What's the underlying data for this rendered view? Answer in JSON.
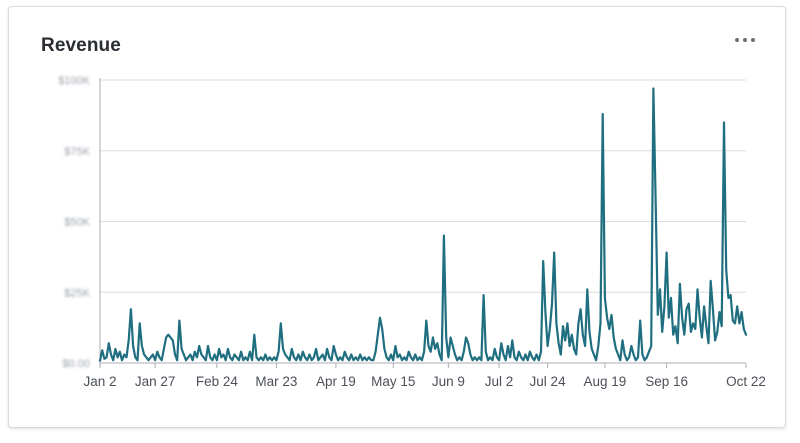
{
  "widget": {
    "title": "Revenue",
    "menu_icon": "more-horizontal-icon"
  },
  "colors": {
    "line": "#1f6f80",
    "grid": "#dcdde0",
    "axis": "#a9adb3"
  },
  "chart_data": {
    "type": "line",
    "title": "Revenue",
    "xlabel": "",
    "ylabel": "",
    "x_tick_labels": [
      "Jan 2",
      "Jan 27",
      "Feb 24",
      "Mar 23",
      "Apr 19",
      "May 15",
      "Jun 9",
      "Jul 2",
      "Jul 24",
      "Aug 19",
      "Sep 16",
      "Oct 22"
    ],
    "y_tick_labels": [
      "$0.00",
      "$25K",
      "$50K",
      "$75K",
      "$100K"
    ],
    "y_tick_values": [
      0,
      25,
      50,
      75,
      100
    ],
    "ylim": [
      0,
      100
    ],
    "grid": true,
    "legend": "none",
    "y_labels_blurred": true,
    "x_day_range": [
      0,
      293
    ],
    "x_tick_days": [
      0,
      25,
      53,
      80,
      107,
      133,
      158,
      181,
      203,
      229,
      257,
      293
    ],
    "series": [
      {
        "points": [
          [
            0,
            0.8
          ],
          [
            1,
            4.5
          ],
          [
            2,
            1.5
          ],
          [
            3,
            2
          ],
          [
            4,
            7
          ],
          [
            5,
            3
          ],
          [
            6,
            1
          ],
          [
            7,
            5
          ],
          [
            8,
            2
          ],
          [
            9,
            4
          ],
          [
            10,
            1
          ],
          [
            11,
            3
          ],
          [
            12,
            2
          ],
          [
            13,
            8
          ],
          [
            14,
            19
          ],
          [
            15,
            6
          ],
          [
            16,
            2
          ],
          [
            17,
            1
          ],
          [
            18,
            14
          ],
          [
            19,
            6
          ],
          [
            20,
            3
          ],
          [
            21,
            2
          ],
          [
            22,
            1
          ],
          [
            23,
            2
          ],
          [
            24,
            3
          ],
          [
            25,
            1
          ],
          [
            26,
            4
          ],
          [
            27,
            2
          ],
          [
            28,
            1
          ],
          [
            29,
            5
          ],
          [
            30,
            9
          ],
          [
            31,
            10
          ],
          [
            32,
            9
          ],
          [
            33,
            8
          ],
          [
            34,
            3
          ],
          [
            35,
            1
          ],
          [
            36,
            15
          ],
          [
            37,
            5
          ],
          [
            38,
            3
          ],
          [
            39,
            1
          ],
          [
            40,
            2
          ],
          [
            41,
            3
          ],
          [
            42,
            1
          ],
          [
            43,
            4
          ],
          [
            44,
            2
          ],
          [
            45,
            6
          ],
          [
            46,
            3
          ],
          [
            47,
            2
          ],
          [
            48,
            1
          ],
          [
            49,
            6
          ],
          [
            50,
            2
          ],
          [
            51,
            1
          ],
          [
            52,
            3
          ],
          [
            53,
            1
          ],
          [
            54,
            5
          ],
          [
            55,
            2
          ],
          [
            56,
            3
          ],
          [
            57,
            1
          ],
          [
            58,
            5
          ],
          [
            59,
            2
          ],
          [
            60,
            1
          ],
          [
            61,
            3
          ],
          [
            62,
            2
          ],
          [
            63,
            1
          ],
          [
            64,
            4
          ],
          [
            65,
            1
          ],
          [
            66,
            2
          ],
          [
            67,
            1
          ],
          [
            68,
            4
          ],
          [
            69,
            1
          ],
          [
            70,
            10
          ],
          [
            71,
            2
          ],
          [
            72,
            1
          ],
          [
            73,
            2
          ],
          [
            74,
            1
          ],
          [
            75,
            3
          ],
          [
            76,
            1
          ],
          [
            77,
            2
          ],
          [
            78,
            1
          ],
          [
            79,
            2
          ],
          [
            80,
            1
          ],
          [
            81,
            4
          ],
          [
            82,
            14
          ],
          [
            83,
            5
          ],
          [
            84,
            3
          ],
          [
            85,
            2
          ],
          [
            86,
            1
          ],
          [
            87,
            5
          ],
          [
            88,
            2
          ],
          [
            89,
            1
          ],
          [
            90,
            3
          ],
          [
            91,
            1
          ],
          [
            92,
            4
          ],
          [
            93,
            2
          ],
          [
            94,
            1
          ],
          [
            95,
            3
          ],
          [
            96,
            1
          ],
          [
            97,
            2
          ],
          [
            98,
            5
          ],
          [
            99,
            1
          ],
          [
            100,
            2
          ],
          [
            101,
            3
          ],
          [
            102,
            1
          ],
          [
            103,
            5
          ],
          [
            104,
            2
          ],
          [
            105,
            1
          ],
          [
            106,
            6
          ],
          [
            107,
            3
          ],
          [
            108,
            1
          ],
          [
            109,
            2
          ],
          [
            110,
            1
          ],
          [
            111,
            4
          ],
          [
            112,
            2
          ],
          [
            113,
            1
          ],
          [
            114,
            3
          ],
          [
            115,
            1
          ],
          [
            116,
            2
          ],
          [
            117,
            1
          ],
          [
            118,
            3
          ],
          [
            119,
            1
          ],
          [
            120,
            2
          ],
          [
            121,
            1
          ],
          [
            122,
            2
          ],
          [
            123,
            1
          ],
          [
            124,
            1
          ],
          [
            125,
            4
          ],
          [
            126,
            10
          ],
          [
            127,
            16
          ],
          [
            128,
            12
          ],
          [
            129,
            5
          ],
          [
            130,
            2
          ],
          [
            131,
            1
          ],
          [
            132,
            3
          ],
          [
            133,
            1
          ],
          [
            134,
            6
          ],
          [
            135,
            2
          ],
          [
            136,
            3
          ],
          [
            137,
            1
          ],
          [
            138,
            2
          ],
          [
            139,
            1
          ],
          [
            140,
            4
          ],
          [
            141,
            2
          ],
          [
            142,
            1
          ],
          [
            143,
            3
          ],
          [
            144,
            1
          ],
          [
            145,
            2
          ],
          [
            146,
            1
          ],
          [
            147,
            4
          ],
          [
            148,
            15
          ],
          [
            149,
            6
          ],
          [
            150,
            4
          ],
          [
            151,
            9
          ],
          [
            152,
            5
          ],
          [
            153,
            7
          ],
          [
            154,
            3
          ],
          [
            155,
            1
          ],
          [
            156,
            45
          ],
          [
            157,
            9
          ],
          [
            158,
            2
          ],
          [
            159,
            9
          ],
          [
            160,
            6
          ],
          [
            161,
            3
          ],
          [
            162,
            1
          ],
          [
            163,
            2
          ],
          [
            164,
            1
          ],
          [
            165,
            4
          ],
          [
            166,
            9
          ],
          [
            167,
            7
          ],
          [
            168,
            3
          ],
          [
            169,
            1
          ],
          [
            170,
            2
          ],
          [
            171,
            1
          ],
          [
            172,
            2
          ],
          [
            173,
            1
          ],
          [
            174,
            24
          ],
          [
            175,
            4
          ],
          [
            176,
            1
          ],
          [
            177,
            2
          ],
          [
            178,
            1
          ],
          [
            179,
            5
          ],
          [
            180,
            2
          ],
          [
            181,
            1
          ],
          [
            182,
            7
          ],
          [
            183,
            3
          ],
          [
            184,
            1
          ],
          [
            185,
            6
          ],
          [
            186,
            2
          ],
          [
            187,
            8
          ],
          [
            188,
            2
          ],
          [
            189,
            1
          ],
          [
            190,
            4
          ],
          [
            191,
            2
          ],
          [
            192,
            1
          ],
          [
            193,
            3
          ],
          [
            194,
            1
          ],
          [
            195,
            4
          ],
          [
            196,
            2
          ],
          [
            197,
            1
          ],
          [
            198,
            3
          ],
          [
            199,
            1
          ],
          [
            200,
            4
          ],
          [
            201,
            36
          ],
          [
            202,
            18
          ],
          [
            203,
            6
          ],
          [
            204,
            12
          ],
          [
            205,
            21
          ],
          [
            206,
            39
          ],
          [
            207,
            14
          ],
          [
            208,
            7
          ],
          [
            209,
            3
          ],
          [
            210,
            13
          ],
          [
            211,
            8
          ],
          [
            212,
            14
          ],
          [
            213,
            6
          ],
          [
            214,
            10
          ],
          [
            215,
            5
          ],
          [
            216,
            3
          ],
          [
            217,
            14
          ],
          [
            218,
            19
          ],
          [
            219,
            10
          ],
          [
            220,
            6
          ],
          [
            221,
            26
          ],
          [
            222,
            11
          ],
          [
            223,
            5
          ],
          [
            224,
            3
          ],
          [
            225,
            1
          ],
          [
            226,
            6
          ],
          [
            227,
            14
          ],
          [
            228,
            88
          ],
          [
            229,
            23
          ],
          [
            230,
            16
          ],
          [
            231,
            12
          ],
          [
            232,
            17
          ],
          [
            233,
            9
          ],
          [
            234,
            5
          ],
          [
            235,
            3
          ],
          [
            236,
            1
          ],
          [
            237,
            8
          ],
          [
            238,
            3
          ],
          [
            239,
            1
          ],
          [
            240,
            2
          ],
          [
            241,
            6
          ],
          [
            242,
            3
          ],
          [
            243,
            1
          ],
          [
            244,
            2
          ],
          [
            245,
            15
          ],
          [
            246,
            3
          ],
          [
            247,
            1
          ],
          [
            248,
            2
          ],
          [
            249,
            4
          ],
          [
            250,
            6
          ],
          [
            251,
            97
          ],
          [
            252,
            58
          ],
          [
            253,
            17
          ],
          [
            254,
            26
          ],
          [
            255,
            11
          ],
          [
            256,
            20
          ],
          [
            257,
            39
          ],
          [
            258,
            16
          ],
          [
            259,
            23
          ],
          [
            260,
            10
          ],
          [
            261,
            13
          ],
          [
            262,
            7
          ],
          [
            263,
            28
          ],
          [
            264,
            16
          ],
          [
            265,
            10
          ],
          [
            266,
            19
          ],
          [
            267,
            21
          ],
          [
            268,
            11
          ],
          [
            269,
            14
          ],
          [
            270,
            12
          ],
          [
            271,
            26
          ],
          [
            272,
            16
          ],
          [
            273,
            9
          ],
          [
            274,
            20
          ],
          [
            275,
            13
          ],
          [
            276,
            7
          ],
          [
            277,
            29
          ],
          [
            278,
            19
          ],
          [
            279,
            8
          ],
          [
            280,
            11
          ],
          [
            281,
            18
          ],
          [
            282,
            13
          ],
          [
            283,
            85
          ],
          [
            284,
            33
          ],
          [
            285,
            23
          ],
          [
            286,
            24
          ],
          [
            287,
            15
          ],
          [
            288,
            14
          ],
          [
            289,
            20
          ],
          [
            290,
            14
          ],
          [
            291,
            18
          ],
          [
            292,
            12
          ],
          [
            293,
            10
          ]
        ]
      }
    ]
  }
}
